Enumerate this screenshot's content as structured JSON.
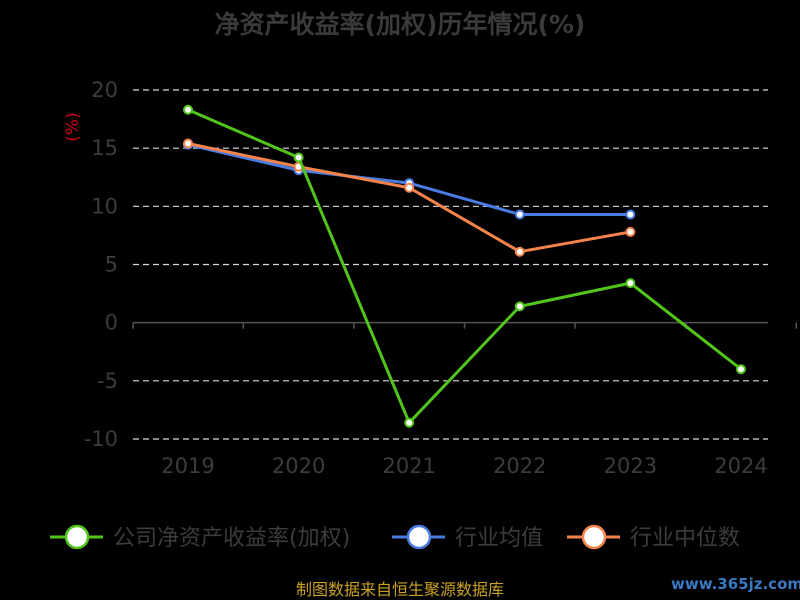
{
  "chart_data": {
    "type": "line",
    "title": "净资产收益率(加权)历年情况(%)",
    "ylabel": "(%)",
    "categories": [
      "2019",
      "2020",
      "2021",
      "2022",
      "2023",
      "2024"
    ],
    "ylim": [
      -10,
      20
    ],
    "yticks": [
      "20",
      "15",
      "10",
      "5",
      "0",
      "-5",
      "-10"
    ],
    "grid": true,
    "legend_position": "bottom",
    "series": [
      {
        "name": "公司净资产收益率(加权)",
        "color": "#52c41a",
        "values": [
          18.3,
          14.2,
          -8.6,
          1.4,
          3.4,
          -4.0
        ]
      },
      {
        "name": "行业均值",
        "color": "#4a7be0",
        "values": [
          15.3,
          13.1,
          12.0,
          9.3,
          9.3,
          null
        ]
      },
      {
        "name": "行业中位数",
        "color": "#f5844c",
        "values": [
          15.4,
          13.4,
          11.6,
          6.1,
          7.8,
          null
        ]
      }
    ]
  },
  "source": "制图数据来自恒生聚源数据库",
  "watermark": "www.365jz.com"
}
